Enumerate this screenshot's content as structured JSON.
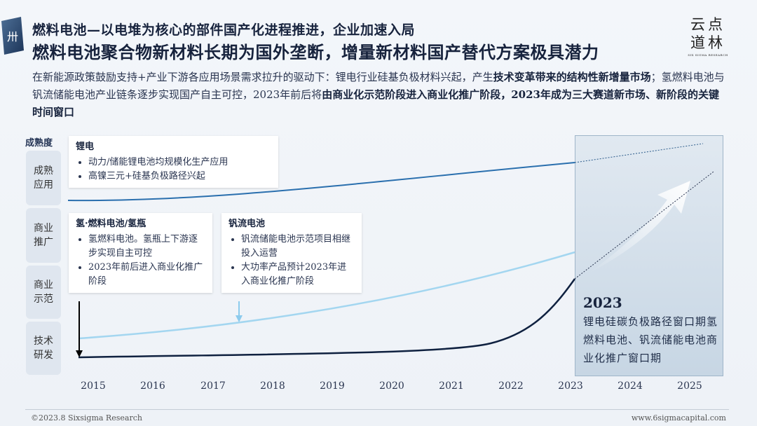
{
  "header": {
    "title_line1": "燃料电池—以电堆为核心的部件国产化进程推进，企业加速入局",
    "title_line2": "燃料电池聚合物新材料长期为国外垄断，增量新材料国产替代方案极具潜力",
    "logo_glyph": "卅"
  },
  "brand": {
    "row1": "云点",
    "row2": "道林",
    "sub": "SIX SIGMA RESEARCH"
  },
  "intro": {
    "part1": "在新能源政策鼓励支持+产业下游各应用场景需求拉升的驱动下：锂电行业硅基负极材料兴起，产生",
    "bold1": "技术变革带来的结构性新增量市场",
    "part2": "；氢燃料电池与钒流储能电池产业链条逐步实现国产自主可控，2023年前后将",
    "bold2": "由商业化示范阶段进入商业化推广阶段，2023年成为三大赛道新市场、新阶段的关键时间窗口"
  },
  "chart": {
    "y_title": "成熟度",
    "y_levels": [
      "成熟应用",
      "商业推广",
      "商业示范",
      "技术研发"
    ],
    "x_ticks": [
      "2015",
      "2016",
      "2017",
      "2018",
      "2019",
      "2020",
      "2021",
      "2022",
      "2023",
      "2024",
      "2025"
    ]
  },
  "cards": {
    "li": {
      "title": "锂电",
      "items": [
        "动力/储能锂电池均规模化生产应用",
        "高镍三元+硅基负极路径兴起"
      ]
    },
    "h2": {
      "title": "氢·燃料电池/氢瓶",
      "items": [
        "氢燃料电池。氢瓶上下游逐步实现自主可控",
        "2023年前后进入商业化推广阶段"
      ]
    },
    "vf": {
      "title": "钒流电池",
      "items": [
        "钒流储能电池示范项目相继投入运营",
        "大功率产品预计2023年进入商业化推广阶段"
      ]
    }
  },
  "panel": {
    "year": "2023",
    "text": "锂电硅碳负极路径窗口期氢燃料电池、钒流储能电池商业化推广窗口期"
  },
  "footer": {
    "left": "©2023.8 Sixsigma Research",
    "right": "www.6sigmacapital.com"
  },
  "colors": {
    "navy": "#0f2140",
    "blue": "#2a6fae",
    "light_blue": "#9fd2ee"
  }
}
